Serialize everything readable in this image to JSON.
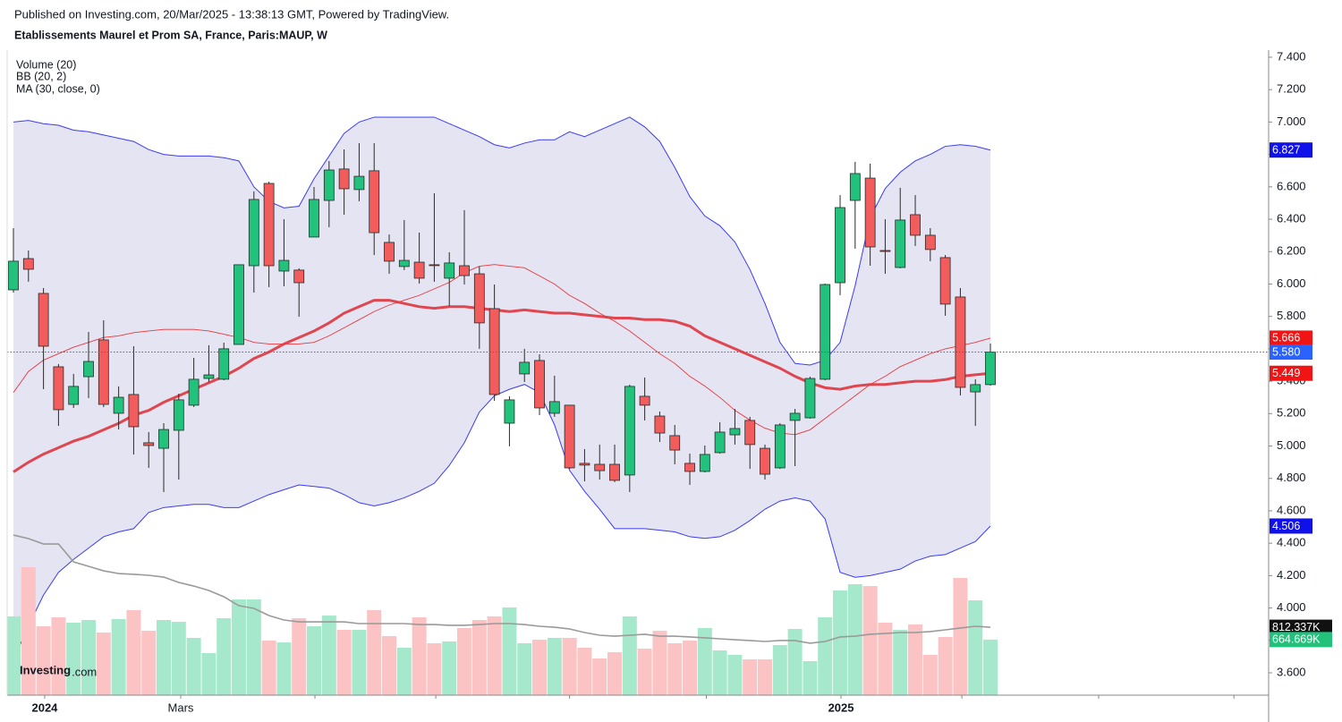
{
  "header": {
    "published": "Published on Investing.com, 20/Mar/2025 - 13:38:13 GMT, Powered by TradingView."
  },
  "logo": {
    "main": "Investing",
    "suffix": ".com"
  },
  "chart_data": {
    "type": "candlestick",
    "title": "Etablissements Maurel et Prom SA, France, Paris:MAUP, W",
    "up_color": "#22c27d",
    "down_color": "#f25c5c",
    "open": [
      5.964,
      6.157,
      5.942,
      5.489,
      5.257,
      5.428,
      5.655,
      5.202,
      5.318,
      5.02,
      4.986,
      5.097,
      5.252,
      5.417,
      5.412,
      5.627,
      6.113,
      6.621,
      6.08,
      6.086,
      6.29,
      6.516,
      6.71,
      6.583,
      6.699,
      6.257,
      6.108,
      6.135,
      6.119,
      6.036,
      6.113,
      6.063,
      5.848,
      5.141,
      5.445,
      5.528,
      5.202,
      5.252,
      4.893,
      4.887,
      4.887,
      4.821,
      5.307,
      5.185,
      5.064,
      4.893,
      4.843,
      4.959,
      5.069,
      5.158,
      4.986,
      4.865,
      5.158,
      5.174,
      5.412,
      6.008,
      6.516,
      6.654,
      6.207,
      6.102,
      6.428,
      6.301,
      6.163,
      5.92,
      5.334,
      5.379
    ],
    "high": [
      6.345,
      6.207,
      5.975,
      5.506,
      5.445,
      5.704,
      5.776,
      5.368,
      5.616,
      5.086,
      5.141,
      5.323,
      5.544,
      5.622,
      5.638,
      6.119,
      6.572,
      6.632,
      6.4,
      6.097,
      6.599,
      6.759,
      6.831,
      6.87,
      6.87,
      6.306,
      6.395,
      6.317,
      6.56,
      6.196,
      6.456,
      6.108,
      5.997,
      5.307,
      5.6,
      5.566,
      5.434,
      5.252,
      4.981,
      5.009,
      5.009,
      5.379,
      5.423,
      5.213,
      5.13,
      4.953,
      5.003,
      5.147,
      5.229,
      5.18,
      5.009,
      5.141,
      5.229,
      5.428,
      6.003,
      6.549,
      6.754,
      6.743,
      6.4,
      6.594,
      6.549,
      6.345,
      6.179,
      5.975,
      5.412,
      5.633
    ],
    "low": [
      5.947,
      6.014,
      5.351,
      5.124,
      5.235,
      5.296,
      5.24,
      5.102,
      4.948,
      4.865,
      4.716,
      4.793,
      5.241,
      5.395,
      5.406,
      5.627,
      5.947,
      5.981,
      5.986,
      5.798,
      6.29,
      6.351,
      6.428,
      6.511,
      6.179,
      6.063,
      6.086,
      6.003,
      6.014,
      5.865,
      5.997,
      5.6,
      5.279,
      4.998,
      5.395,
      5.191,
      5.18,
      4.859,
      4.782,
      4.793,
      4.777,
      4.716,
      5.158,
      5.025,
      4.887,
      4.76,
      4.837,
      4.953,
      5.009,
      4.859,
      4.793,
      4.859,
      4.876,
      5.169,
      5.406,
      5.931,
      6.218,
      6.113,
      6.063,
      6.097,
      6.235,
      6.141,
      5.804,
      5.312,
      5.124,
      5.373
    ],
    "close": [
      6.141,
      6.091,
      5.616,
      5.224,
      5.368,
      5.522,
      5.257,
      5.301,
      5.119,
      5.003,
      5.102,
      5.285,
      5.412,
      5.439,
      5.6,
      6.119,
      6.522,
      6.113,
      6.146,
      6.008,
      6.522,
      6.704,
      6.588,
      6.665,
      6.317,
      6.141,
      6.146,
      6.036,
      6.115,
      6.13,
      6.052,
      5.76,
      5.318,
      5.285,
      5.517,
      5.235,
      5.274,
      4.865,
      4.882,
      4.848,
      4.788,
      5.368,
      5.252,
      5.08,
      4.975,
      4.843,
      4.948,
      5.086,
      5.108,
      5.009,
      4.826,
      5.13,
      5.202,
      5.417,
      5.997,
      6.472,
      6.682,
      6.229,
      6.201,
      6.395,
      6.301,
      6.213,
      5.876,
      5.362,
      5.379,
      5.58
    ],
    "last_close_label": "5.580",
    "last_close_color": "#2962ff",
    "ylim": [
      3.462,
      7.444
    ],
    "yticks": [
      {
        "value": 3.6,
        "label": "3.600"
      },
      {
        "value": 3.8,
        "label": "3.800"
      },
      {
        "value": 4.0,
        "label": "4.000"
      },
      {
        "value": 4.2,
        "label": "4.200"
      },
      {
        "value": 4.4,
        "label": "4.400"
      },
      {
        "value": 4.6,
        "label": "4.600"
      },
      {
        "value": 4.8,
        "label": "4.800"
      },
      {
        "value": 5.0,
        "label": "5.000"
      },
      {
        "value": 5.2,
        "label": "5.200"
      },
      {
        "value": 5.4,
        "label": "5.400"
      },
      {
        "value": 5.6,
        "label": "5.600"
      },
      {
        "value": 5.8,
        "label": "5.800"
      },
      {
        "value": 6.0,
        "label": "6.000"
      },
      {
        "value": 6.2,
        "label": "6.200"
      },
      {
        "value": 6.4,
        "label": "6.400"
      },
      {
        "value": 6.6,
        "label": "6.600"
      },
      {
        "value": 6.8,
        "label": "6.800"
      },
      {
        "value": 7.0,
        "label": "7.000"
      },
      {
        "value": 7.2,
        "label": "7.200"
      },
      {
        "value": 7.4,
        "label": "7.400"
      }
    ],
    "xlim": [
      -0.417,
      83.51
    ],
    "xticks": [
      {
        "value": 2.08,
        "label": "2024"
      },
      {
        "value": 11.13,
        "label": "Mars"
      },
      {
        "value": 20.06,
        "label": null
      },
      {
        "value": 28.1,
        "label": null
      },
      {
        "value": 37.0,
        "label": null
      },
      {
        "value": 46.1,
        "label": null
      },
      {
        "value": 55.06,
        "label": "2025"
      },
      {
        "value": 63.1,
        "label": null
      },
      {
        "value": 72.2,
        "label": null
      },
      {
        "value": 81.2,
        "label": null
      }
    ],
    "volume": {
      "name": "Volume (20)",
      "up_color": "#a6e8cc",
      "down_color": "#fbc3c3",
      "ma_color": "#9a9a9a",
      "ylim": [
        0,
        7715
      ],
      "values": [
        942,
        1530,
        824,
        931,
        867,
        899,
        749,
        910,
        1017,
        770,
        899,
        877,
        685,
        503,
        920,
        1145,
        1145,
        653,
        631,
        920,
        824,
        952,
        781,
        781,
        1017,
        706,
        567,
        931,
        621,
        642,
        803,
        899,
        942,
        1049,
        621,
        663,
        685,
        685,
        567,
        439,
        514,
        942,
        556,
        770,
        621,
        653,
        803,
        535,
        482,
        428,
        428,
        599,
        792,
        407,
        931,
        1252,
        1327,
        1305,
        867,
        781,
        845,
        482,
        696,
        1402,
        1134,
        664.669
      ],
      "last_label": "664.669K",
      "last_color": "#22c27d",
      "ma": [
        1915,
        1873,
        1808,
        1808,
        1594,
        1541,
        1487,
        1455,
        1445,
        1434,
        1412,
        1348,
        1305,
        1252,
        1177,
        1070,
        1038,
        952,
        899,
        877,
        877,
        877,
        877,
        856,
        856,
        856,
        856,
        845,
        845,
        835,
        835,
        845,
        856,
        856,
        845,
        824,
        813,
        792,
        749,
        717,
        706,
        717,
        728,
        706,
        706,
        696,
        685,
        674,
        663,
        653,
        642,
        653,
        653,
        621,
        642,
        696,
        706,
        728,
        738,
        749,
        749,
        760,
        781,
        803,
        824,
        812.337
      ],
      "ma_last_label": "812.337K",
      "ma_last_color": "#111111"
    },
    "bollinger": {
      "name": "BB (20, 2)",
      "fill": "#e4e4f2",
      "band_color": "#3b3bf5",
      "mid_color": "#e8383d",
      "upper": [
        7.0,
        7.01,
        6.99,
        6.98,
        6.95,
        6.94,
        6.92,
        6.9,
        6.88,
        6.83,
        6.8,
        6.79,
        6.79,
        6.79,
        6.78,
        6.76,
        6.6,
        6.51,
        6.47,
        6.48,
        6.65,
        6.79,
        6.93,
        7.0,
        7.03,
        7.03,
        7.03,
        7.03,
        7.03,
        6.99,
        6.95,
        6.91,
        6.86,
        6.84,
        6.87,
        6.89,
        6.89,
        6.94,
        6.91,
        6.95,
        6.99,
        7.03,
        6.97,
        6.88,
        6.72,
        6.54,
        6.42,
        6.36,
        6.26,
        6.09,
        5.88,
        5.64,
        5.51,
        5.5,
        5.53,
        5.64,
        5.99,
        6.41,
        6.59,
        6.69,
        6.76,
        6.8,
        6.85,
        6.86,
        6.85,
        6.827
      ],
      "middle": [
        5.33,
        5.46,
        5.53,
        5.57,
        5.61,
        5.64,
        5.67,
        5.68,
        5.7,
        5.71,
        5.72,
        5.72,
        5.72,
        5.71,
        5.69,
        5.67,
        5.64,
        5.63,
        5.63,
        5.63,
        5.64,
        5.68,
        5.73,
        5.78,
        5.83,
        5.87,
        5.9,
        5.93,
        5.97,
        6.01,
        6.07,
        6.11,
        6.12,
        6.11,
        6.1,
        6.05,
        6.0,
        5.93,
        5.88,
        5.82,
        5.77,
        5.71,
        5.64,
        5.57,
        5.51,
        5.43,
        5.37,
        5.3,
        5.22,
        5.16,
        5.11,
        5.08,
        5.07,
        5.1,
        5.17,
        5.24,
        5.31,
        5.38,
        5.43,
        5.49,
        5.53,
        5.57,
        5.6,
        5.62,
        5.64,
        5.666
      ],
      "lower": [
        3.68,
        3.89,
        4.08,
        4.22,
        4.3,
        4.37,
        4.44,
        4.47,
        4.49,
        4.59,
        4.62,
        4.63,
        4.64,
        4.64,
        4.62,
        4.62,
        4.66,
        4.7,
        4.73,
        4.76,
        4.75,
        4.74,
        4.7,
        4.65,
        4.63,
        4.65,
        4.68,
        4.72,
        4.77,
        4.88,
        5.02,
        5.21,
        5.31,
        5.35,
        5.38,
        5.33,
        5.13,
        4.85,
        4.72,
        4.61,
        4.49,
        4.49,
        4.49,
        4.48,
        4.47,
        4.44,
        4.43,
        4.44,
        4.48,
        4.54,
        4.61,
        4.66,
        4.68,
        4.66,
        4.55,
        4.22,
        4.19,
        4.2,
        4.22,
        4.24,
        4.29,
        4.32,
        4.33,
        4.37,
        4.41,
        4.506
      ],
      "upper_label": "6.827",
      "upper_tag_color": "#1010e8",
      "middle_label": "5.666",
      "middle_tag_color": "#f01414",
      "lower_label": "4.506",
      "lower_tag_color": "#1010e8"
    },
    "ma": {
      "name": "MA (30, close, 0)",
      "color": "#e0464f",
      "values": [
        4.84,
        4.9,
        4.95,
        4.99,
        5.03,
        5.06,
        5.1,
        5.14,
        5.19,
        5.22,
        5.27,
        5.31,
        5.35,
        5.39,
        5.43,
        5.48,
        5.54,
        5.58,
        5.63,
        5.67,
        5.71,
        5.76,
        5.82,
        5.86,
        5.9,
        5.9,
        5.88,
        5.86,
        5.85,
        5.86,
        5.86,
        5.85,
        5.84,
        5.83,
        5.84,
        5.83,
        5.82,
        5.82,
        5.81,
        5.8,
        5.79,
        5.79,
        5.78,
        5.78,
        5.77,
        5.74,
        5.68,
        5.64,
        5.6,
        5.56,
        5.52,
        5.48,
        5.43,
        5.39,
        5.36,
        5.35,
        5.37,
        5.38,
        5.38,
        5.39,
        5.4,
        5.4,
        5.41,
        5.43,
        5.44,
        5.449
      ],
      "last_label": "5.449",
      "tag_color": "#f01414"
    }
  }
}
